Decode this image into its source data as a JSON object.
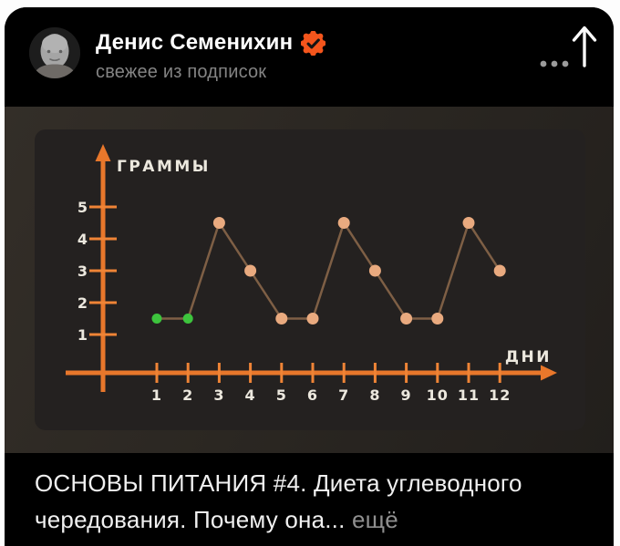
{
  "header": {
    "channel_name": "Денис Семенихин",
    "subtitle": "свежее из подписок",
    "verified_badge_color": "#f4551c",
    "verified_check_color": "#141414",
    "icons": {
      "share": "arrow-up-icon",
      "more": "ellipsis-icon"
    }
  },
  "chart_data": {
    "type": "line",
    "title": "",
    "xlabel": "ДНИ",
    "ylabel": "ГРАММЫ",
    "x": [
      1,
      2,
      3,
      4,
      5,
      6,
      7,
      8,
      9,
      10,
      11,
      12
    ],
    "values": [
      1.5,
      1.5,
      4.5,
      3,
      1.5,
      1.5,
      4.5,
      3,
      1.5,
      1.5,
      4.5,
      3
    ],
    "point_colors": [
      "green",
      "green",
      "orange",
      "orange",
      "orange",
      "orange",
      "orange",
      "orange",
      "orange",
      "orange",
      "orange",
      "orange"
    ],
    "y_ticks": [
      1,
      2,
      3,
      4,
      5
    ],
    "xlim": [
      0,
      13
    ],
    "ylim": [
      0,
      5.5
    ],
    "grid": false,
    "legend": false,
    "colors": {
      "axis": "#e8772b",
      "tick": "#ef8436",
      "label": "#ece8de",
      "line": "#7e5f45",
      "point": "#e9aa7f",
      "point_green": "#3dc43d"
    }
  },
  "caption": {
    "text": "ОСНОВЫ ПИТАНИЯ #4. Диета углеводного чередования. Почему она...",
    "more_label": "ещё"
  }
}
